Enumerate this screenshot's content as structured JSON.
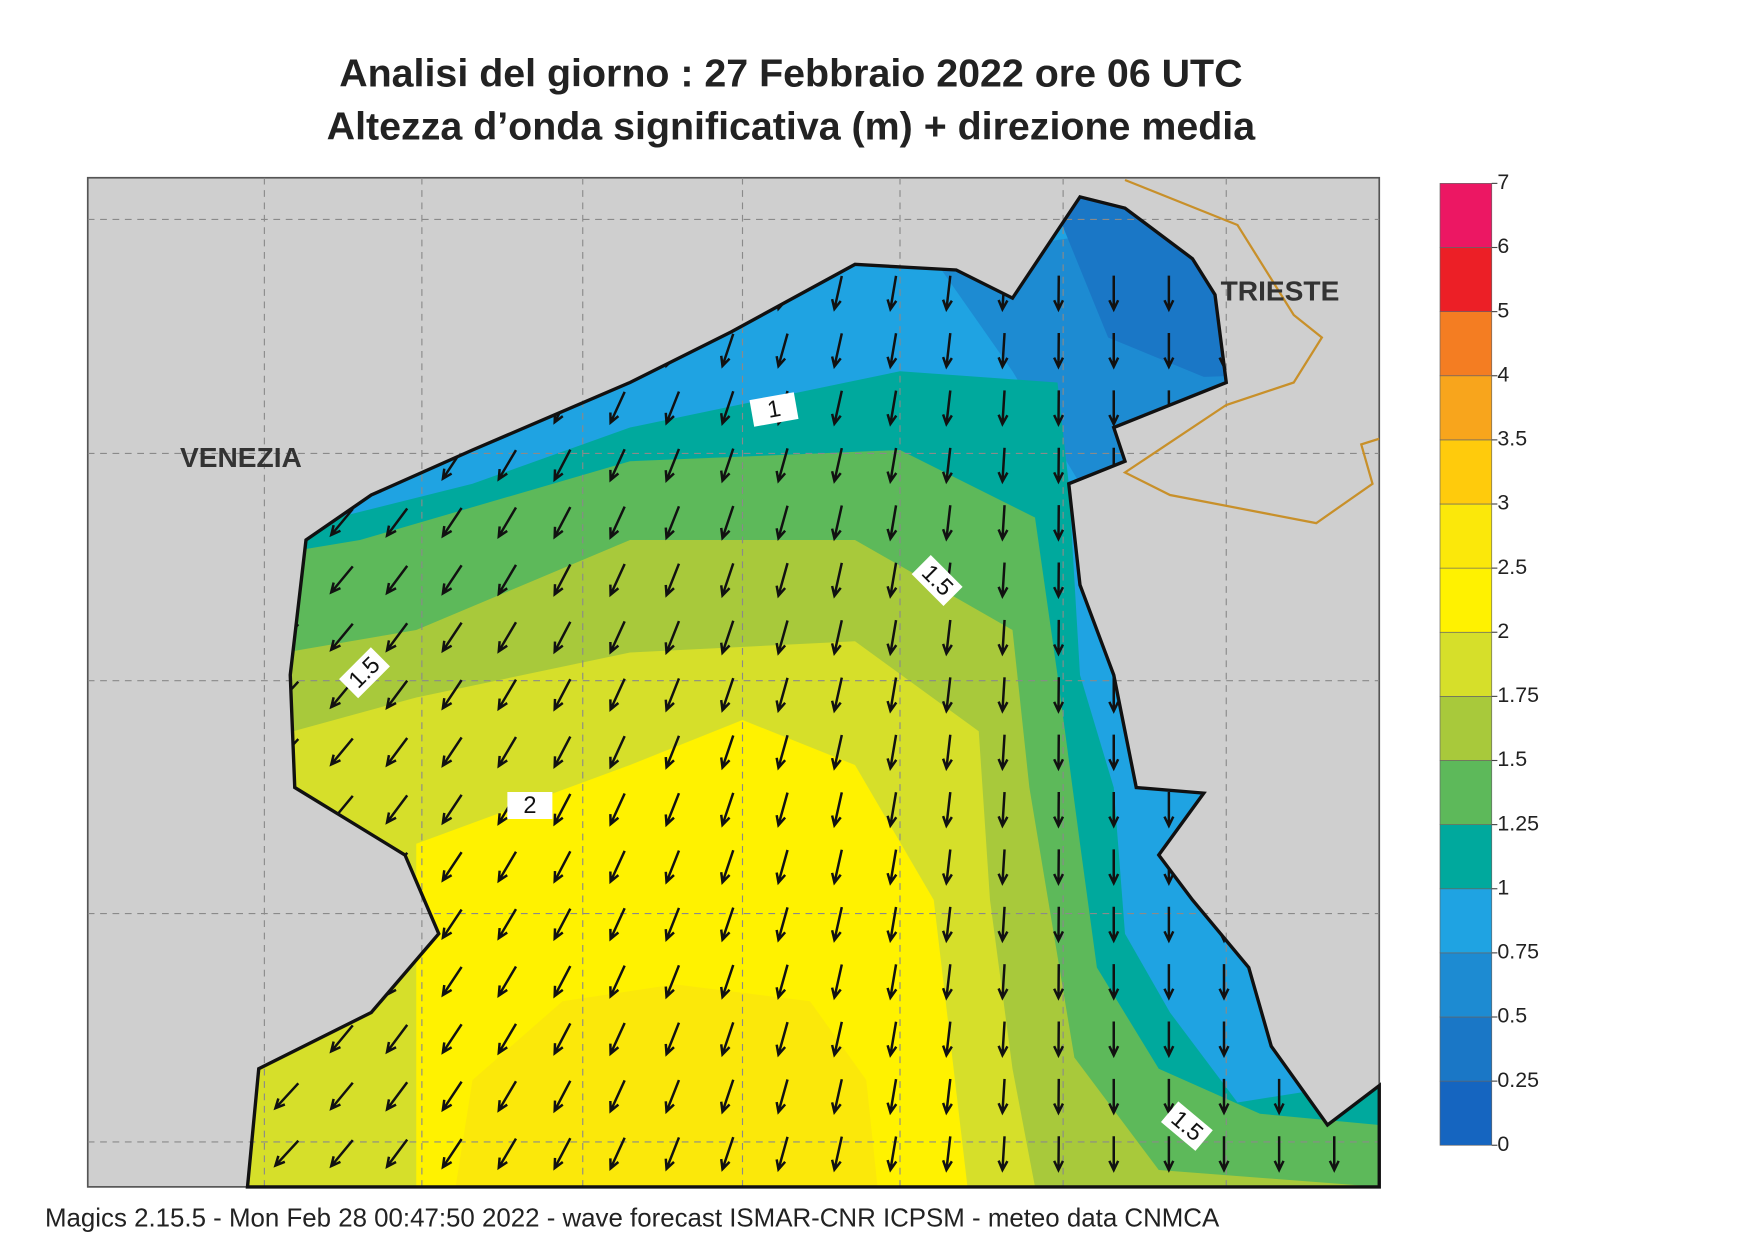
{
  "header": {
    "title": "Analisi del giorno :  27  Febbraio 2022   ore 06 UTC",
    "subtitle": "Altezza d’onda significativa (m) + direzione media"
  },
  "map": {
    "places": [
      "VENEZIA",
      "TRIESTE"
    ],
    "contour_labels": [
      1,
      1.5,
      1.5,
      2,
      1.5
    ]
  },
  "colorbar": {
    "levels": [
      0,
      0.25,
      0.5,
      0.75,
      1,
      1.25,
      1.5,
      1.75,
      2,
      2.5,
      3,
      3.5,
      4,
      5,
      6,
      7
    ],
    "colors": [
      "#1565c0",
      "#1a77c6",
      "#1d8bd2",
      "#1fa3e2",
      "#00a99d",
      "#5db95a",
      "#a8c93b",
      "#d6df2a",
      "#fff200",
      "#fbe80a",
      "#ffcb0c",
      "#f8a51c",
      "#f47d22",
      "#ec1f26",
      "#ec1763"
    ]
  },
  "footer": "Magics 2.15.5 - Mon Feb 28 00:47:50 2022 - wave forecast  ISMAR-CNR  ICPSM - meteo data   CNMCA"
}
